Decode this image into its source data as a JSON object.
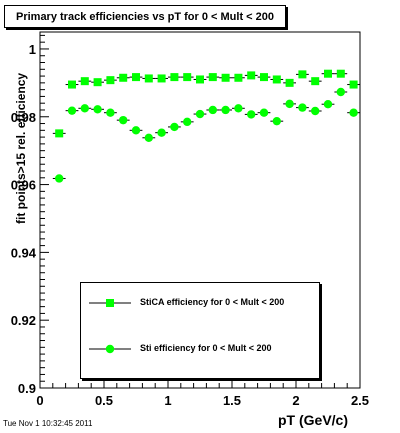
{
  "title": "Primary track efficiencies vs pT for 0 < Mult < 200",
  "footer": "Tue Nov  1 10:32:45 2011",
  "chart_data": {
    "type": "scatter",
    "xlabel": "pT (GeV/c)",
    "ylabel": "fit points>15 rel. efficiency",
    "xlim": [
      0,
      2.5
    ],
    "ylim": [
      0.9,
      1.005
    ],
    "xticks": [
      "0",
      "0.5",
      "1",
      "1.5",
      "2",
      "2.5"
    ],
    "yticks": [
      "0.9",
      "0.92",
      "0.94",
      "0.96",
      "0.98",
      "1"
    ],
    "legend": "bottom-center",
    "series": [
      {
        "name": "StiCA efficiency  for 0 < Mult < 200",
        "marker": "square",
        "color": "#00ff00",
        "x": [
          0.15,
          0.25,
          0.35,
          0.45,
          0.55,
          0.65,
          0.75,
          0.85,
          0.95,
          1.05,
          1.15,
          1.25,
          1.35,
          1.45,
          1.55,
          1.65,
          1.75,
          1.85,
          1.95,
          2.05,
          2.15,
          2.25,
          2.35,
          2.45
        ],
        "y": [
          0.9751,
          0.9895,
          0.9905,
          0.9902,
          0.9908,
          0.9915,
          0.9917,
          0.9913,
          0.9913,
          0.9917,
          0.9917,
          0.991,
          0.9917,
          0.9915,
          0.9915,
          0.9922,
          0.9917,
          0.991,
          0.99,
          0.9925,
          0.9905,
          0.9927,
          0.9927,
          0.9895
        ]
      },
      {
        "name": "Sti efficiency  for 0 < Mult < 200",
        "marker": "circle",
        "color": "#00ff00",
        "x": [
          0.15,
          0.25,
          0.35,
          0.45,
          0.55,
          0.65,
          0.75,
          0.85,
          0.95,
          1.05,
          1.15,
          1.25,
          1.35,
          1.45,
          1.55,
          1.65,
          1.75,
          1.85,
          1.95,
          2.05,
          2.15,
          2.25,
          2.35,
          2.45
        ],
        "y": [
          0.9618,
          0.9818,
          0.9825,
          0.9822,
          0.9812,
          0.979,
          0.976,
          0.9738,
          0.9753,
          0.977,
          0.9785,
          0.9808,
          0.982,
          0.982,
          0.9825,
          0.9807,
          0.9812,
          0.9787,
          0.9838,
          0.9827,
          0.9817,
          0.9837,
          0.9873,
          0.9812
        ]
      }
    ]
  }
}
